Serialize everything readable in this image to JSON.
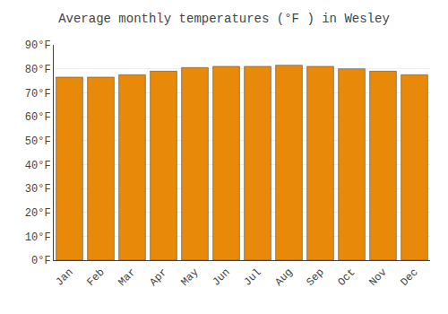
{
  "chart_data": {
    "type": "bar",
    "title": "Average monthly temperatures (°F ) in Wesley",
    "categories": [
      "Jan",
      "Feb",
      "Mar",
      "Apr",
      "May",
      "Jun",
      "Jul",
      "Aug",
      "Sep",
      "Oct",
      "Nov",
      "Dec"
    ],
    "values": [
      76.5,
      76.5,
      77.5,
      79.0,
      80.5,
      81.0,
      81.0,
      81.5,
      81.0,
      80.0,
      79.0,
      77.5
    ],
    "color": "#E8890A",
    "ylim": [
      0,
      90
    ],
    "yticks": [
      {
        "value": 0,
        "label": "0°F"
      },
      {
        "value": 10,
        "label": "10°F"
      },
      {
        "value": 20,
        "label": "20°F"
      },
      {
        "value": 30,
        "label": "30°F"
      },
      {
        "value": 40,
        "label": "40°F"
      },
      {
        "value": 50,
        "label": "50°F"
      },
      {
        "value": 60,
        "label": "60°F"
      },
      {
        "value": 70,
        "label": "70°F"
      },
      {
        "value": 80,
        "label": "80°F"
      },
      {
        "value": 90,
        "label": "90°F"
      }
    ],
    "grid": true
  }
}
